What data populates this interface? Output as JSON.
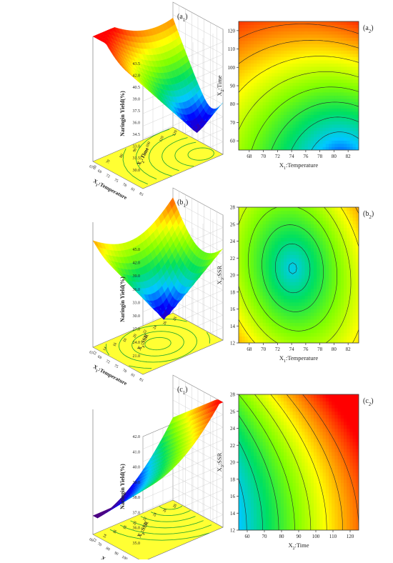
{
  "chart_data": [
    {
      "panel": "a1",
      "type": "surface3d",
      "label": "(a₁)",
      "zlabel": "Naringin Yield(%)",
      "x_axis": {
        "label": "X₁:Temperature",
        "ticks": [
          "67",
          "69",
          "72",
          "75",
          "78",
          "81",
          "83"
        ]
      },
      "y_axis": {
        "label": "X₂:Time",
        "ticks": [
          "60",
          "70",
          "80",
          "90",
          "100",
          "110",
          "120"
        ]
      },
      "z_ticks": [
        "30.0",
        "31.5",
        "33.0",
        "34.5",
        "36.0",
        "37.5",
        "39.0",
        "40.5",
        "42.0",
        "43.5"
      ],
      "zlim": [
        30.0,
        43.5
      ]
    },
    {
      "panel": "a2",
      "type": "contour",
      "label": "(a₂)",
      "xlabel": "X₁:Temperature",
      "ylabel": "X₂:Time",
      "x_ticks": [
        "68",
        "70",
        "72",
        "74",
        "76",
        "78",
        "80",
        "82"
      ],
      "y_ticks": [
        "60",
        "70",
        "80",
        "90",
        "100",
        "110",
        "120"
      ],
      "xlim": [
        66.5,
        83.5
      ],
      "ylim": [
        55,
        125
      ]
    },
    {
      "panel": "b1",
      "type": "surface3d",
      "label": "(b₁)",
      "zlabel": "Naringin Yield(%)",
      "x_axis": {
        "label": "X₁:Temperature",
        "ticks": [
          "67",
          "69",
          "72",
          "75",
          "78",
          "81",
          "83"
        ]
      },
      "y_axis": {
        "label": "X₃:SSR",
        "ticks": [
          "12",
          "14",
          "16",
          "18",
          "20",
          "22",
          "24",
          "26",
          "28"
        ]
      },
      "z_ticks": [
        "21.0",
        "24.0",
        "27.0",
        "30.0",
        "33.0",
        "36.0",
        "39.0",
        "42.0",
        "45.0"
      ],
      "zlim": [
        21.0,
        45.0
      ]
    },
    {
      "panel": "b2",
      "type": "contour",
      "label": "(b₂)",
      "xlabel": "X₁:Temperature",
      "ylabel": "X₃:SSR",
      "x_ticks": [
        "68",
        "70",
        "72",
        "74",
        "76",
        "78",
        "80",
        "82"
      ],
      "y_ticks": [
        "12",
        "14",
        "16",
        "18",
        "20",
        "22",
        "24",
        "26",
        "28"
      ],
      "xlim": [
        66.5,
        83.5
      ],
      "ylim": [
        12,
        28
      ]
    },
    {
      "panel": "c1",
      "type": "surface3d",
      "label": "(c₁)",
      "zlabel": "Naringin Yield(%)",
      "x_axis": {
        "label": "X₂:Time",
        "ticks": [
          "60",
          "70",
          "80",
          "90",
          "100",
          "110",
          "120"
        ]
      },
      "y_axis": {
        "label": "X₃:SSR",
        "ticks": [
          "12",
          "14",
          "16",
          "18",
          "20",
          "22",
          "24",
          "26",
          "28"
        ]
      },
      "z_ticks": [
        "35.0",
        "36.0",
        "37.0",
        "38.0",
        "39.0",
        "40.0",
        "41.0",
        "42.0"
      ],
      "zlim": [
        35.0,
        42.0
      ]
    },
    {
      "panel": "c2",
      "type": "contour",
      "label": "(c₂)",
      "xlabel": "X₂:Time",
      "ylabel": "X₃:SSR",
      "x_ticks": [
        "60",
        "70",
        "80",
        "90",
        "100",
        "110",
        "120"
      ],
      "y_ticks": [
        "12",
        "14",
        "16",
        "18",
        "20",
        "22",
        "24",
        "26",
        "28"
      ],
      "xlim": [
        55,
        125
      ],
      "ylim": [
        12,
        28
      ]
    }
  ],
  "colors": {
    "surface_scale": [
      "#4b0082",
      "#0000ff",
      "#00c8ff",
      "#00e060",
      "#80ff00",
      "#ffff00",
      "#ff8000",
      "#ff0000"
    ],
    "base_plane": "#ffff33",
    "base_contour": "#2eaa2e"
  }
}
